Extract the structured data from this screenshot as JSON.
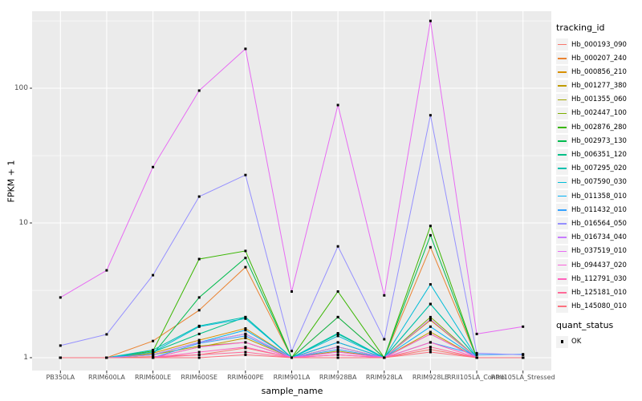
{
  "chart_data": {
    "type": "line",
    "title": "",
    "xlabel": "sample_name",
    "ylabel": "FPKM + 1",
    "y_scale": "log10",
    "y_ticks": [
      1,
      10,
      100
    ],
    "y_minor_ticks": [
      3.16,
      31.6,
      316
    ],
    "ylim": [
      0.8,
      373
    ],
    "grid": "major-and-minor-horizontal, major-vertical, white on gray panel",
    "legend_position": "right",
    "point_marker": "small black square on every data point",
    "categories": [
      "PB350LA",
      "RRIM600LA",
      "RRIM600LE",
      "RRIM600SE",
      "RRIM600PE",
      "RRIM901LA",
      "RRIM928BA",
      "RRIM928LA",
      "RRIM928LE",
      "RRII105LA_Control",
      "RRII105LA_Stressed"
    ],
    "series": [
      {
        "name": "Hb_000193_090",
        "color": "#F8766D",
        "values": [
          1,
          1,
          1.02,
          1.05,
          1.18,
          1,
          1.05,
          1,
          1.15,
          1,
          1
        ]
      },
      {
        "name": "Hb_000207_240",
        "color": "#EA8331",
        "values": [
          1,
          1,
          1.33,
          2.25,
          4.7,
          1,
          2.0,
          1,
          6.6,
          1,
          1
        ]
      },
      {
        "name": "Hb_000856_210",
        "color": "#D89000",
        "values": [
          1,
          1,
          1.08,
          1.35,
          1.65,
          1,
          1.3,
          1,
          1.9,
          1,
          1
        ]
      },
      {
        "name": "Hb_001277_380",
        "color": "#C09B00",
        "values": [
          1,
          1,
          1,
          1.2,
          1.4,
          1,
          1.2,
          1,
          1.55,
          1,
          1
        ]
      },
      {
        "name": "Hb_001355_060",
        "color": "#A3A500",
        "values": [
          1,
          1,
          1.05,
          1.22,
          1.3,
          1,
          1.12,
          1,
          1.5,
          1,
          1
        ]
      },
      {
        "name": "Hb_002447_100",
        "color": "#7CAE00",
        "values": [
          1,
          1,
          1.05,
          1.3,
          1.5,
          1,
          1.2,
          1,
          2.0,
          1,
          1
        ]
      },
      {
        "name": "Hb_002876_280",
        "color": "#39B600",
        "values": [
          1,
          1,
          1.12,
          5.4,
          6.2,
          1,
          3.1,
          1,
          9.5,
          1,
          1
        ]
      },
      {
        "name": "Hb_002973_130",
        "color": "#00BB4E",
        "values": [
          1,
          1,
          1.06,
          2.8,
          5.5,
          1,
          2.0,
          1,
          8.1,
          1,
          1
        ]
      },
      {
        "name": "Hb_006351_120",
        "color": "#00C087",
        "values": [
          1,
          1,
          1.1,
          1.5,
          2.0,
          1,
          1.5,
          1,
          2.5,
          1,
          1
        ]
      },
      {
        "name": "Hb_007295_020",
        "color": "#00C0AF",
        "values": [
          1,
          1,
          1.14,
          1.72,
          2.0,
          1,
          1.52,
          1,
          2.5,
          1,
          1
        ]
      },
      {
        "name": "Hb_007590_030",
        "color": "#00BCD8",
        "values": [
          1,
          1,
          1.1,
          1.7,
          1.95,
          1,
          1.45,
          1,
          3.5,
          1,
          1
        ]
      },
      {
        "name": "Hb_011358_010",
        "color": "#00B0F6",
        "values": [
          1,
          1,
          1.05,
          1.3,
          1.6,
          1,
          1.3,
          1,
          1.7,
          1,
          1
        ]
      },
      {
        "name": "Hb_011432_010",
        "color": "#35A2FF",
        "values": [
          1,
          1,
          1,
          1.28,
          1.45,
          1,
          1.15,
          1,
          1.3,
          1.05,
          1.06
        ]
      },
      {
        "name": "Hb_016564_050",
        "color": "#9590FF",
        "values": [
          1.23,
          1.49,
          4.1,
          15.7,
          22.7,
          1.12,
          6.7,
          1.37,
          63,
          1.08,
          1.05
        ]
      },
      {
        "name": "Hb_016734_040",
        "color": "#C77CFF",
        "values": [
          1,
          1,
          1.05,
          1.3,
          1.5,
          1,
          1.2,
          1,
          1.93,
          1,
          1
        ]
      },
      {
        "name": "Hb_037519_010",
        "color": "#E76BF3",
        "values": [
          2.8,
          4.45,
          26,
          96,
          196,
          3.1,
          75,
          2.9,
          316,
          1.5,
          1.7
        ]
      },
      {
        "name": "Hb_094437_020",
        "color": "#FA62DB",
        "values": [
          1,
          1,
          1,
          1.2,
          1.3,
          1,
          1.1,
          1,
          1.5,
          1,
          1
        ]
      },
      {
        "name": "Hb_112791_030",
        "color": "#FF62BC",
        "values": [
          1,
          1,
          1,
          1.1,
          1.2,
          1,
          1.05,
          1,
          1.3,
          1,
          1
        ]
      },
      {
        "name": "Hb_125181_010",
        "color": "#FF6A98",
        "values": [
          1,
          1,
          1,
          1.05,
          1.1,
          1,
          1,
          1,
          1.2,
          1,
          1
        ]
      },
      {
        "name": "Hb_145080_010",
        "color": "#FC717F",
        "values": [
          1,
          1,
          1,
          1,
          1.05,
          1,
          1,
          1,
          1.1,
          1,
          1
        ]
      }
    ],
    "legend": {
      "tracking_title": "tracking_id",
      "quant_title": "quant_status",
      "quant_items": [
        {
          "label": "OK",
          "marker": "black-square-point"
        }
      ]
    },
    "colors": {
      "page_bg": "#FFFFFF",
      "panel_bg": "#EBEBEB",
      "grid": "#FFFFFF",
      "axis_text": "#4D4D4D",
      "tick_mark": "#333333",
      "marker": "#000000",
      "legend_key_bg": "#F2F2F2"
    }
  }
}
